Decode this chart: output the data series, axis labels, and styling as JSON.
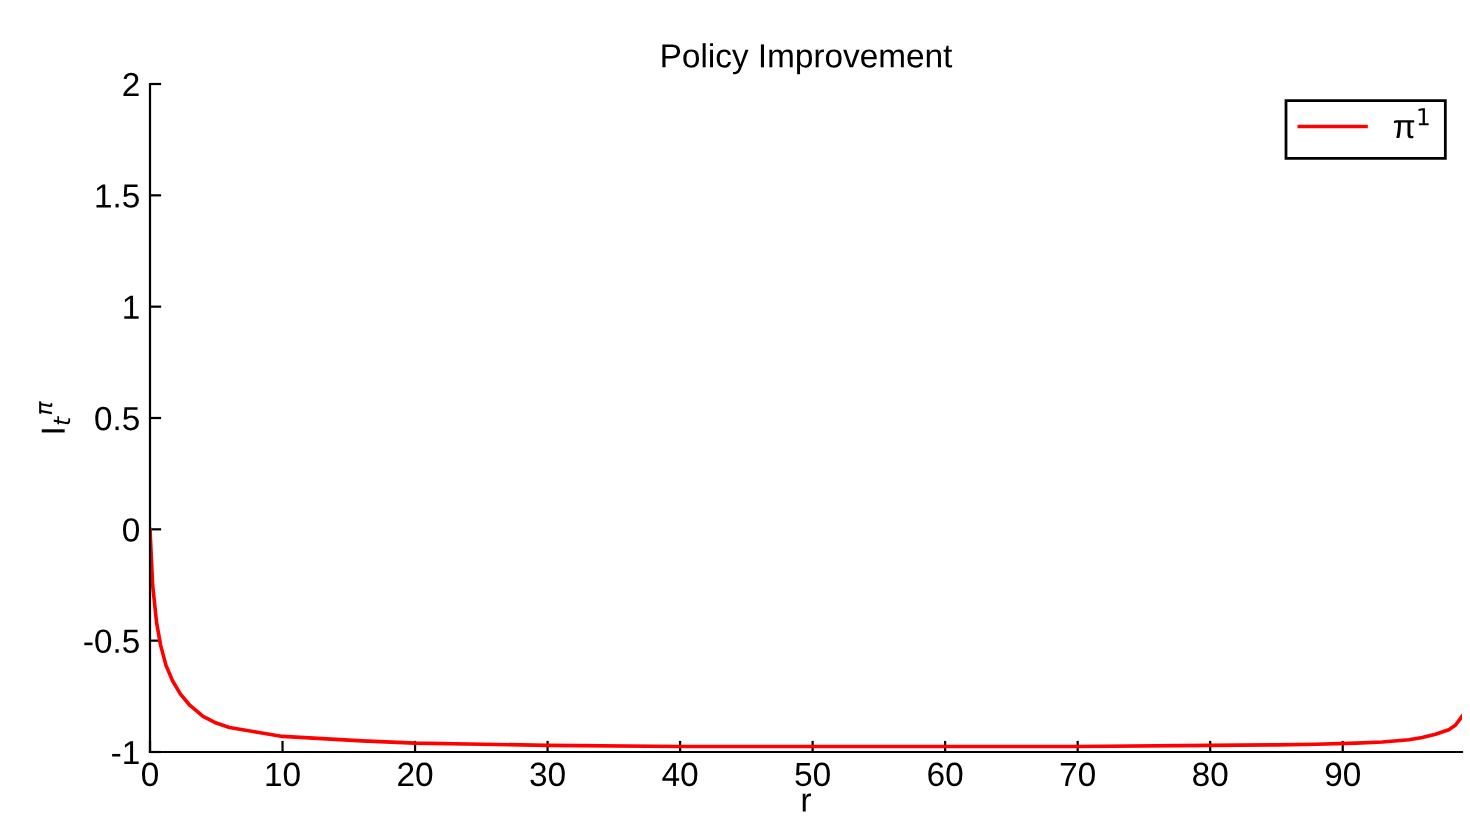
{
  "chart_data": {
    "type": "line",
    "title": "Policy Improvement",
    "xlabel": "r",
    "ylabel": "I$_{t}$$^{π}$",
    "xlim": [
      0,
      99
    ],
    "ylim": [
      -1,
      2
    ],
    "xticks": [
      0,
      10,
      20,
      30,
      40,
      50,
      60,
      70,
      80,
      90
    ],
    "yticks": [
      -1,
      -0.5,
      0,
      0.5,
      1,
      1.5,
      2
    ],
    "grid": false,
    "legend": "top right",
    "series": [
      {
        "name": "π$^{1}$",
        "color": "#ff0000",
        "x": [
          0,
          0.2,
          0.5,
          0.8,
          1.2,
          1.7,
          2.3,
          3,
          4,
          5,
          6,
          8,
          10,
          13,
          16,
          20,
          25,
          30,
          40,
          50,
          60,
          70,
          80,
          85,
          88,
          91,
          93,
          95,
          96,
          97,
          98,
          98.5,
          99
        ],
        "values": [
          0,
          -0.25,
          -0.42,
          -0.52,
          -0.61,
          -0.68,
          -0.74,
          -0.79,
          -0.84,
          -0.87,
          -0.89,
          -0.91,
          -0.93,
          -0.94,
          -0.95,
          -0.96,
          -0.965,
          -0.97,
          -0.975,
          -0.975,
          -0.975,
          -0.975,
          -0.97,
          -0.968,
          -0.965,
          -0.96,
          -0.955,
          -0.945,
          -0.935,
          -0.92,
          -0.9,
          -0.88,
          -0.84
        ]
      }
    ]
  }
}
